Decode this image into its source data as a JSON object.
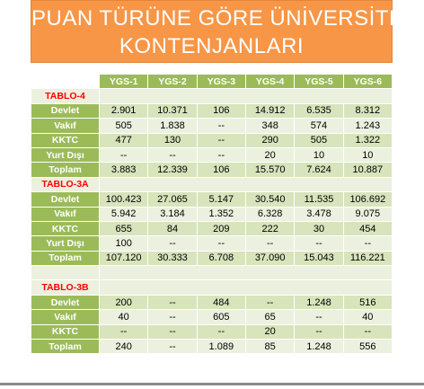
{
  "title": {
    "line1": "PUAN TÜRÜNE GÖRE ÜNİVERSİTE",
    "line2": "KONTENJANLARI"
  },
  "columns": [
    "YGS-1",
    "YGS-2",
    "YGS-3",
    "YGS-4",
    "YGS-5",
    "YGS-6"
  ],
  "sections": [
    {
      "name": "TABLO-4",
      "rows": [
        {
          "label": "Devlet",
          "values": [
            "2.901",
            "10.371",
            "106",
            "14.912",
            "6.535",
            "8.312"
          ]
        },
        {
          "label": "Vakıf",
          "values": [
            "505",
            "1.838",
            "--",
            "348",
            "574",
            "1.243"
          ]
        },
        {
          "label": "KKTC",
          "values": [
            "477",
            "130",
            "--",
            "290",
            "505",
            "1.322"
          ]
        },
        {
          "label": "Yurt Dışı",
          "values": [
            "--",
            "--",
            "--",
            "20",
            "10",
            "10"
          ]
        },
        {
          "label": "Toplam",
          "values": [
            "3.883",
            "12.339",
            "106",
            "15.570",
            "7.624",
            "10.887"
          ]
        }
      ]
    },
    {
      "name": "TABLO-3A",
      "rows": [
        {
          "label": "Devlet",
          "values": [
            "100.423",
            "27.065",
            "5.147",
            "30.540",
            "11.535",
            "106.692"
          ]
        },
        {
          "label": "Vakıf",
          "values": [
            "5.942",
            "3.184",
            "1.352",
            "6.328",
            "3.478",
            "9.075"
          ]
        },
        {
          "label": "KKTC",
          "values": [
            "655",
            "84",
            "209",
            "222",
            "30",
            "454"
          ]
        },
        {
          "label": "Yurt Dışı",
          "values": [
            "100",
            "--",
            "--",
            "--",
            "--",
            "--"
          ]
        },
        {
          "label": "Toplam",
          "values": [
            "107.120",
            "30.333",
            "6.708",
            "37.090",
            "15.043",
            "116.221"
          ]
        }
      ]
    },
    {
      "name": "TABLO-3B",
      "rows": [
        {
          "label": "Devlet",
          "values": [
            "200",
            "--",
            "484",
            "--",
            "1.248",
            "516"
          ]
        },
        {
          "label": "Vakıf",
          "values": [
            "40",
            "--",
            "605",
            "65",
            "--",
            "40"
          ]
        },
        {
          "label": "KKTC",
          "values": [
            "--",
            "--",
            "--",
            "20",
            "--",
            "--"
          ]
        },
        {
          "label": "Toplam",
          "values": [
            "240",
            "--",
            "1.089",
            "85",
            "1.248",
            "556"
          ]
        }
      ]
    }
  ],
  "colors": {
    "banner": "#f79646",
    "header": "#9bbb59",
    "row_light": "#ebf1de",
    "row_dark": "#d7e4bc",
    "section_text": "#ff0000"
  }
}
